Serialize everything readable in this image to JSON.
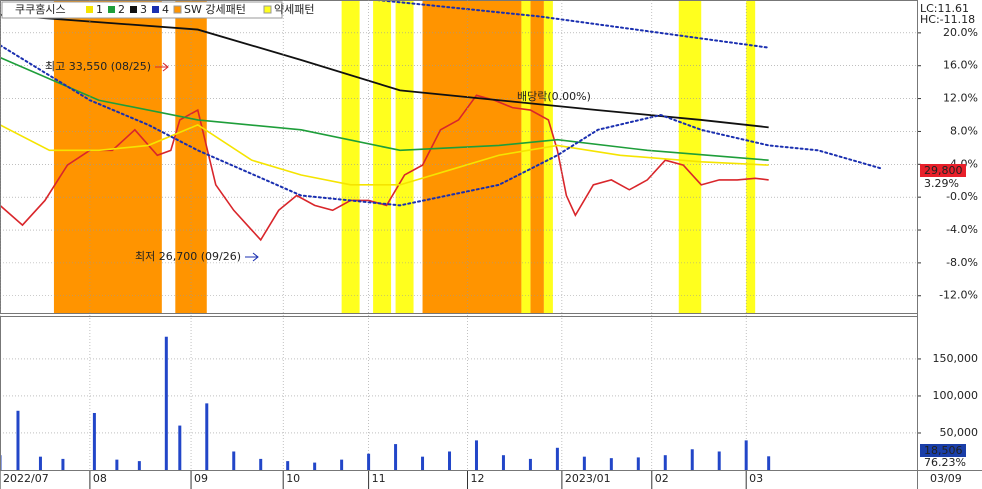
{
  "chart_data": [
    {
      "type": "line",
      "title": "쿠쿠홈시스",
      "xlim": [
        0,
        204
      ],
      "ylim": [
        -14.1,
        24
      ],
      "grid": true,
      "yticks": [
        {
          "value": 20,
          "label": "20.0%"
        },
        {
          "value": 16,
          "label": "16.0%"
        },
        {
          "value": 12,
          "label": "12.0%"
        },
        {
          "value": 8,
          "label": "8.0%"
        },
        {
          "value": 4,
          "label": "4.0%"
        },
        {
          "value": 0,
          "label": "-0.0%"
        },
        {
          "value": -4,
          "label": "-4.0%"
        },
        {
          "value": -8,
          "label": "-8.0%"
        },
        {
          "value": -12,
          "label": "-12.0%"
        }
      ],
      "patterns": [
        {
          "name": "SW 강세패턴",
          "color": "#ff9400",
          "ranges": [
            [
              12,
              36
            ],
            [
              39,
              46
            ],
            [
              94,
              116
            ],
            [
              118,
              121
            ],
            [
              152,
              153
            ]
          ]
        },
        {
          "name": "약세패턴",
          "color": "#ffff1e",
          "ranges": [
            [
              76,
              80
            ],
            [
              83,
              87
            ],
            [
              88,
              92
            ],
            [
              116,
              118
            ],
            [
              121,
              123
            ],
            [
              151,
              156
            ],
            [
              166,
              168
            ]
          ]
        }
      ],
      "series": [
        {
          "color": "#d9262b",
          "width": 1.6,
          "x": [
            0,
            5,
            10,
            15,
            20,
            25,
            30,
            35,
            38,
            40,
            44,
            48,
            52,
            56,
            58,
            62,
            66,
            70,
            74,
            78,
            82,
            86,
            90,
            94,
            98,
            102,
            106,
            110,
            114,
            118,
            122,
            124,
            126,
            128,
            132,
            136,
            140,
            144,
            148,
            152,
            156,
            160,
            164,
            168,
            171
          ],
          "values": [
            -1,
            -3.4,
            -0.4,
            3.9,
            5.7,
            5.7,
            8.2,
            5.1,
            5.7,
            9.4,
            10.6,
            1.5,
            -1.6,
            -4,
            -5.2,
            -1.6,
            0.2,
            -1,
            -1.6,
            -0.4,
            -0.4,
            -1,
            2.7,
            3.9,
            8.2,
            9.4,
            12.4,
            11.8,
            10.9,
            10.6,
            9.4,
            5.7,
            0.2,
            -2.2,
            1.5,
            2.1,
            0.9,
            2.1,
            4.5,
            3.9,
            1.5,
            2.1,
            2.1,
            2.3,
            2.1
          ]
        },
        {
          "name": "1",
          "color": "#f5e400",
          "width": 1.6,
          "x": [
            0,
            11,
            22,
            33,
            44,
            56,
            67,
            78,
            89,
            100,
            111,
            124,
            138,
            156,
            171
          ],
          "values": [
            8.8,
            5.7,
            5.7,
            6.3,
            8.8,
            4.5,
            2.7,
            1.5,
            1.5,
            3.3,
            5.1,
            6.3,
            5.1,
            4.3,
            3.9
          ]
        },
        {
          "name": "2",
          "color": "#1e9e3a",
          "width": 1.6,
          "x": [
            0,
            22,
            44,
            67,
            89,
            111,
            124,
            144,
            171
          ],
          "values": [
            17,
            11.8,
            9.4,
            8.2,
            5.7,
            6.3,
            7,
            5.7,
            4.5
          ]
        },
        {
          "name": "3",
          "color": "#111111",
          "width": 1.8,
          "x": [
            0,
            44,
            67,
            89,
            111,
            133,
            156,
            171
          ],
          "values": [
            22.2,
            20.4,
            16.7,
            13,
            11.8,
            10.6,
            9.4,
            8.5
          ]
        },
        {
          "name": "4",
          "color": "#1a2fb0",
          "width": 2,
          "dotted": true,
          "x": [
            0,
            20,
            33,
            44,
            67,
            89,
            111,
            124,
            133,
            147,
            156,
            171,
            182,
            196
          ],
          "values": [
            18.5,
            11.8,
            8.8,
            5.7,
            0.2,
            -1,
            1.5,
            5.1,
            8.2,
            10,
            8.2,
            6.3,
            5.7,
            3.5
          ]
        },
        {
          "color": "#1a2fb0",
          "width": 2,
          "dotted": true,
          "x": [
            84,
            120,
            171
          ],
          "values": [
            24,
            22,
            18.2
          ]
        }
      ],
      "annotations": [
        {
          "text": "최고 33,550 (08/25)",
          "color": "#d9262b"
        },
        {
          "text": "최저 26,700 (09/26)",
          "color": "#1a2fb0"
        },
        {
          "text": "배당락(0.00%)",
          "color": "#222222"
        }
      ],
      "labels": {
        "lc": "LC:11.61",
        "hc": "HC:-11.18",
        "price": "29,800",
        "change": "3.29%"
      }
    },
    {
      "type": "bar",
      "xlim": [
        0,
        204
      ],
      "ylim": [
        0,
        208000
      ],
      "grid": true,
      "yticks": [
        {
          "value": 150000,
          "label": "150,000"
        },
        {
          "value": 100000,
          "label": "100,000"
        },
        {
          "value": 50000,
          "label": "50,000"
        }
      ],
      "xticks": [
        {
          "value": 0,
          "label": "2022/07"
        },
        {
          "value": 20,
          "label": "08"
        },
        {
          "value": 42.5,
          "label": "09"
        },
        {
          "value": 63,
          "label": "10"
        },
        {
          "value": 82,
          "label": "11"
        },
        {
          "value": 104,
          "label": "12"
        },
        {
          "value": 125,
          "label": "2023/01"
        },
        {
          "value": 145,
          "label": "02"
        },
        {
          "value": 166,
          "label": "03"
        }
      ],
      "series": [
        {
          "color": "#2246c8",
          "x": [
            0,
            4,
            9,
            14,
            21,
            26,
            31,
            37,
            40,
            46,
            52,
            58,
            64,
            70,
            76,
            82,
            88,
            94,
            100,
            106,
            112,
            118,
            124,
            130,
            136,
            142,
            148,
            154,
            160,
            166,
            171
          ],
          "values": [
            20000,
            80000,
            18000,
            15000,
            77000,
            14000,
            12000,
            180000,
            60000,
            90000,
            25000,
            15000,
            12000,
            10000,
            14000,
            22000,
            35000,
            18000,
            25000,
            40000,
            20000,
            15000,
            30000,
            18000,
            16000,
            17000,
            20000,
            28000,
            25000,
            40000,
            18506
          ]
        }
      ],
      "labels": {
        "volume": "18,506",
        "ratio": "76.23%",
        "date": "03/09"
      }
    }
  ]
}
